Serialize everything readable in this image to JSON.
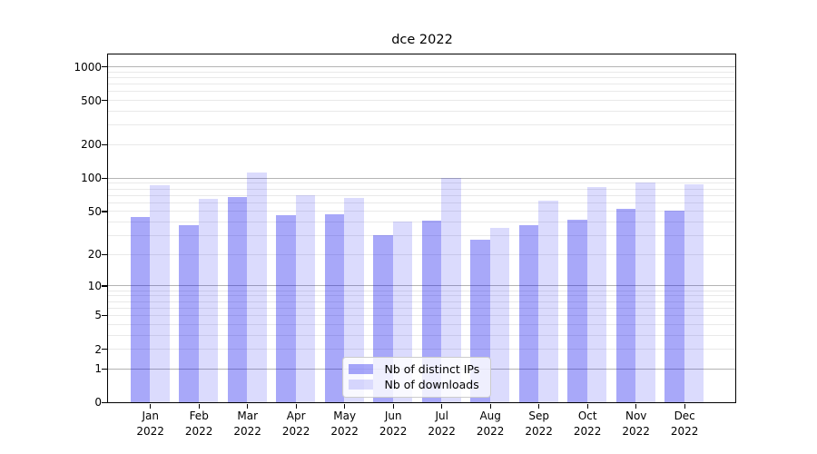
{
  "chart_data": {
    "type": "bar",
    "title": "dce 2022",
    "categories": [
      "Jan\n2022",
      "Feb\n2022",
      "Mar\n2022",
      "Apr\n2022",
      "May\n2022",
      "Jun\n2022",
      "Jul\n2022",
      "Aug\n2022",
      "Sep\n2022",
      "Oct\n2022",
      "Nov\n2022",
      "Dec\n2022"
    ],
    "series": [
      {
        "name": "Nb of distinct IPs",
        "color": "rgba(0,0,238,0.34)",
        "values": [
          44,
          37,
          67,
          46,
          47,
          30,
          41,
          27,
          37,
          42,
          52,
          50
        ]
      },
      {
        "name": "Nb of downloads",
        "color": "rgba(0,0,238,0.14)",
        "values": [
          86,
          65,
          112,
          70,
          66,
          40,
          100,
          35,
          62,
          82,
          90,
          88
        ]
      }
    ],
    "xlabel": "",
    "ylabel": "",
    "yscale": "log1p",
    "yticks": [
      0,
      1,
      2,
      5,
      10,
      20,
      50,
      100,
      200,
      500,
      1000
    ],
    "ylim": [
      0,
      1286
    ],
    "grid": "horizontal major+minor",
    "legend_position": "inside lower-center",
    "colors": {
      "bar_base": "#0000ee",
      "grid_major": "#b4b4b4",
      "grid_minor": "#e9e9e9",
      "spine": "#000000"
    }
  }
}
